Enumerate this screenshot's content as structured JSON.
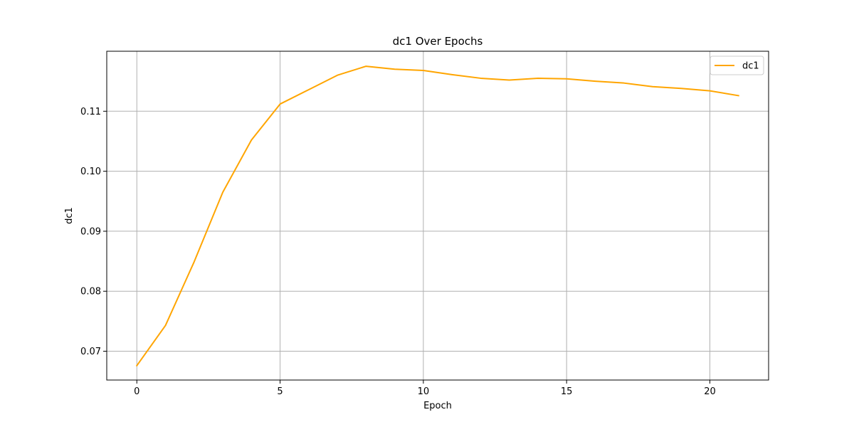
{
  "chart_data": {
    "type": "line",
    "title": "dc1 Over Epochs",
    "xlabel": "Epoch",
    "ylabel": "dc1",
    "xlim": [
      -1.05,
      22.05
    ],
    "ylim": [
      0.0652,
      0.12
    ],
    "xticks": [
      0,
      5,
      10,
      15,
      20
    ],
    "yticks": [
      0.07,
      0.08,
      0.09,
      0.1,
      0.11
    ],
    "ytick_labels": [
      "0.07",
      "0.08",
      "0.09",
      "0.10",
      "0.11"
    ],
    "grid": true,
    "legend_position": "top-right",
    "series": [
      {
        "name": "dc1",
        "color": "#ffa500",
        "x": [
          0,
          1,
          2,
          3,
          4,
          5,
          6,
          7,
          8,
          9,
          10,
          11,
          12,
          13,
          14,
          15,
          16,
          17,
          18,
          19,
          20,
          21
        ],
        "y": [
          0.0676,
          0.0743,
          0.0849,
          0.0965,
          0.1052,
          0.1112,
          0.1136,
          0.116,
          0.1175,
          0.117,
          0.1168,
          0.1161,
          0.1155,
          0.1152,
          0.1155,
          0.1154,
          0.115,
          0.1147,
          0.1141,
          0.1138,
          0.1134,
          0.1126
        ]
      }
    ]
  }
}
